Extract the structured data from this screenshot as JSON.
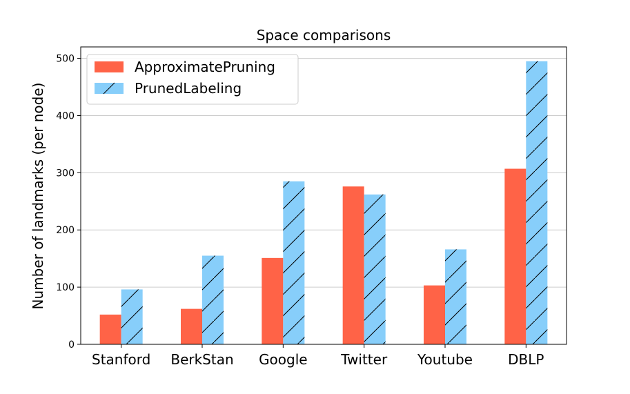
{
  "chart_data": {
    "type": "bar",
    "title": "Space comparisons",
    "xlabel": "",
    "ylabel": "Number of landmarks (per node)",
    "categories": [
      "Stanford",
      "BerkStan",
      "Google",
      "Twitter",
      "Youtube",
      "DBLP"
    ],
    "series": [
      {
        "name": "ApproximatePruning",
        "values": [
          52,
          62,
          151,
          276,
          103,
          307
        ],
        "color": "#ff6347",
        "hatch": "none"
      },
      {
        "name": "PrunedLabeling",
        "values": [
          96,
          155,
          285,
          262,
          166,
          495
        ],
        "color": "#87cefa",
        "hatch": "diagonal"
      }
    ],
    "ylim": [
      0,
      520
    ],
    "yticks": [
      0,
      100,
      200,
      300,
      400,
      500
    ],
    "grid": "horizontal",
    "legend_position": "top-left"
  }
}
